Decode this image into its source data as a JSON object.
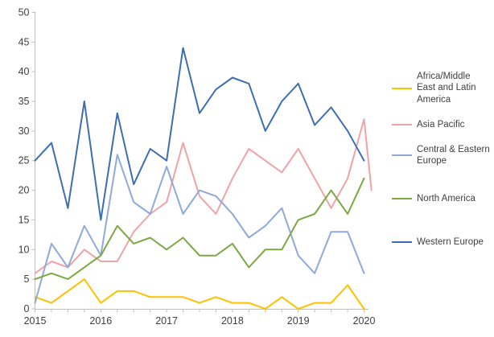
{
  "chart_data": {
    "type": "line",
    "title": "",
    "x_axis": {
      "tick_labels": [
        "2015",
        "2016",
        "2017",
        "2018",
        "2019",
        "2020"
      ],
      "tick_indices": [
        0,
        4,
        8,
        12,
        16,
        20
      ],
      "points_per_year": 4,
      "n_points": 21
    },
    "y_axis": {
      "min": 0,
      "max": 50,
      "step": 5,
      "tick_labels": [
        "0",
        "5",
        "10",
        "15",
        "20",
        "25",
        "30",
        "35",
        "40",
        "45",
        "50"
      ]
    },
    "grid": "off",
    "legend_position": "right",
    "axis_color": "#bfbfbf",
    "label_color": "#404040",
    "series": [
      {
        "name": "Africa/Middle East and Latin America",
        "color": "#ffc000",
        "values": [
          2,
          1,
          3,
          5,
          1,
          3,
          3,
          2,
          2,
          2,
          1,
          2,
          1,
          1,
          0,
          2,
          0,
          1,
          1,
          4,
          0
        ]
      },
      {
        "name": "Asia Pacific",
        "color": "#f0a3a7",
        "values": [
          6,
          8,
          7,
          10,
          8,
          8,
          13,
          16,
          18,
          28,
          19,
          16,
          22,
          27,
          25,
          23,
          27,
          22,
          17,
          22,
          32
        ],
        "extra_points": [
          {
            "x": 20.45,
            "value": 20
          }
        ]
      },
      {
        "name": "Central & Eastern Europe",
        "color": "#8eaadb",
        "values": [
          1,
          11,
          7,
          14,
          9,
          26,
          18,
          16,
          24,
          16,
          20,
          19,
          16,
          12,
          14,
          17,
          9,
          6,
          13,
          13,
          6
        ]
      },
      {
        "name": "North America",
        "color": "#7ca842",
        "values": [
          5,
          6,
          5,
          7,
          9,
          14,
          11,
          12,
          10,
          12,
          9,
          9,
          11,
          7,
          10,
          10,
          15,
          16,
          20,
          16,
          22
        ]
      },
      {
        "name": "Western Europe",
        "color": "#3c6eb4",
        "values": [
          25,
          28,
          17,
          35,
          15,
          33,
          21,
          27,
          25,
          44,
          33,
          37,
          39,
          38,
          30,
          35,
          38,
          31,
          34,
          30,
          25
        ]
      }
    ]
  }
}
